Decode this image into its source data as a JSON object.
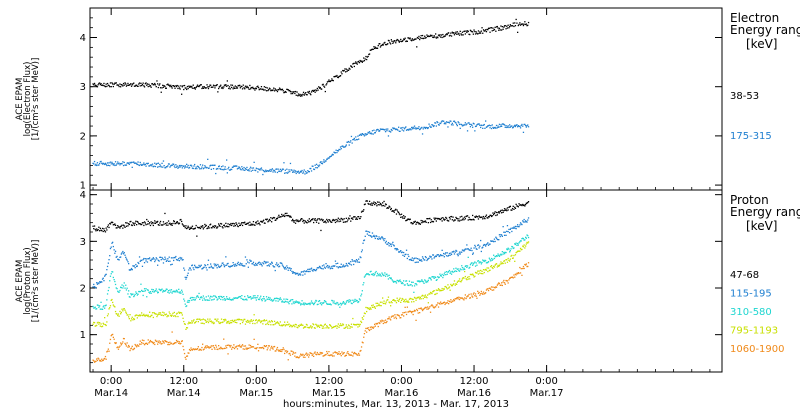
{
  "chart_data": {
    "type": "scatter",
    "x_label": "hours:minutes, Mar. 13, 2013 - Mar. 17, 2013",
    "x_range_hours": [
      -3.5,
      101
    ],
    "x_ticks": [
      {
        "h": 0,
        "time": "0:00",
        "date": "Mar.14"
      },
      {
        "h": 12,
        "time": "12:00",
        "date": "Mar.14"
      },
      {
        "h": 24,
        "time": "0:00",
        "date": "Mar.15"
      },
      {
        "h": 36,
        "time": "12:00",
        "date": "Mar.15"
      },
      {
        "h": 48,
        "time": "0:00",
        "date": "Mar.16"
      },
      {
        "h": 60,
        "time": "12:00",
        "date": "Mar.16"
      },
      {
        "h": 72,
        "time": "0:00",
        "date": "Mar.17"
      }
    ],
    "panels": [
      {
        "id": "electron",
        "ylabel_lines": [
          "ACE EPAM",
          "log(Electron Flux)",
          "[1/(cm²s ster MeV)]"
        ],
        "ylim": [
          0.9,
          4.6
        ],
        "yticks": [
          1,
          2,
          3,
          4
        ],
        "legend_title_lines": [
          "Electron",
          "Energy range"
        ],
        "legend_unit": "[keV]",
        "series": [
          {
            "name": "38-53",
            "color": "#000000",
            "points": [
              [
                -3,
                3.05
              ],
              [
                6,
                3.05
              ],
              [
                12,
                3.0
              ],
              [
                18,
                3.02
              ],
              [
                22,
                3.0
              ],
              [
                28,
                2.95
              ],
              [
                30,
                2.88
              ],
              [
                32,
                2.85
              ],
              [
                34,
                2.95
              ],
              [
                37,
                3.2
              ],
              [
                40,
                3.45
              ],
              [
                42,
                3.58
              ],
              [
                43,
                3.8
              ],
              [
                46,
                3.92
              ],
              [
                50,
                4.0
              ],
              [
                54,
                4.05
              ],
              [
                58,
                4.1
              ],
              [
                62,
                4.15
              ],
              [
                65,
                4.22
              ],
              [
                67,
                4.28
              ],
              [
                69,
                4.3
              ]
            ]
          },
          {
            "name": "175-315",
            "color": "#1f7fd0",
            "points": [
              [
                -3,
                1.45
              ],
              [
                4,
                1.45
              ],
              [
                10,
                1.4
              ],
              [
                16,
                1.38
              ],
              [
                22,
                1.35
              ],
              [
                28,
                1.3
              ],
              [
                32,
                1.28
              ],
              [
                34,
                1.4
              ],
              [
                36,
                1.6
              ],
              [
                39,
                1.85
              ],
              [
                41,
                2.0
              ],
              [
                44,
                2.12
              ],
              [
                48,
                2.15
              ],
              [
                52,
                2.2
              ],
              [
                55,
                2.3
              ],
              [
                58,
                2.25
              ],
              [
                62,
                2.2
              ],
              [
                66,
                2.22
              ],
              [
                69,
                2.22
              ]
            ]
          }
        ]
      },
      {
        "id": "proton",
        "ylabel_lines": [
          "ACE EPAM",
          "log(Proton Flux)",
          "[1/(cm²s ster MeV)]"
        ],
        "ylim": [
          0.2,
          4.1
        ],
        "yticks": [
          1,
          2,
          3,
          4
        ],
        "legend_title_lines": [
          "Proton",
          "Energy range"
        ],
        "legend_unit": "[keV]",
        "series": [
          {
            "name": "47-68",
            "color": "#000000",
            "points": [
              [
                -3,
                3.3
              ],
              [
                -1,
                3.25
              ],
              [
                0,
                3.45
              ],
              [
                1,
                3.3
              ],
              [
                3,
                3.4
              ],
              [
                10,
                3.4
              ],
              [
                11.5,
                3.45
              ],
              [
                12.2,
                3.3
              ],
              [
                18,
                3.35
              ],
              [
                24,
                3.4
              ],
              [
                27,
                3.5
              ],
              [
                29,
                3.6
              ],
              [
                30,
                3.45
              ],
              [
                36,
                3.45
              ],
              [
                41,
                3.5
              ],
              [
                42,
                3.85
              ],
              [
                45,
                3.8
              ],
              [
                47,
                3.65
              ],
              [
                48,
                3.55
              ],
              [
                50,
                3.4
              ],
              [
                54,
                3.5
              ],
              [
                58,
                3.5
              ],
              [
                62,
                3.55
              ],
              [
                66,
                3.72
              ],
              [
                69,
                3.85
              ]
            ]
          },
          {
            "name": "115-195",
            "color": "#1f7fd0",
            "points": [
              [
                -3,
                2.05
              ],
              [
                -1,
                2.25
              ],
              [
                0,
                3.0
              ],
              [
                1,
                2.6
              ],
              [
                2,
                2.8
              ],
              [
                3,
                2.4
              ],
              [
                5,
                2.6
              ],
              [
                11.7,
                2.65
              ],
              [
                12.2,
                2.2
              ],
              [
                13,
                2.45
              ],
              [
                18,
                2.5
              ],
              [
                24,
                2.55
              ],
              [
                28,
                2.5
              ],
              [
                31,
                2.3
              ],
              [
                34,
                2.45
              ],
              [
                38,
                2.5
              ],
              [
                41,
                2.6
              ],
              [
                42,
                3.2
              ],
              [
                45,
                3.05
              ],
              [
                47,
                2.85
              ],
              [
                50,
                2.6
              ],
              [
                54,
                2.7
              ],
              [
                58,
                2.8
              ],
              [
                62,
                2.95
              ],
              [
                66,
                3.25
              ],
              [
                69,
                3.5
              ]
            ]
          },
          {
            "name": "310-580",
            "color": "#1fd6d0",
            "points": [
              [
                -3,
                1.6
              ],
              [
                -1,
                1.6
              ],
              [
                0,
                2.4
              ],
              [
                1,
                1.9
              ],
              [
                2,
                2.1
              ],
              [
                3,
                1.85
              ],
              [
                5,
                1.95
              ],
              [
                11.7,
                1.95
              ],
              [
                12.2,
                1.6
              ],
              [
                13,
                1.8
              ],
              [
                18,
                1.8
              ],
              [
                24,
                1.8
              ],
              [
                28,
                1.75
              ],
              [
                31,
                1.7
              ],
              [
                34,
                1.7
              ],
              [
                38,
                1.7
              ],
              [
                41,
                1.75
              ],
              [
                42,
                2.35
              ],
              [
                45,
                2.3
              ],
              [
                47,
                2.15
              ],
              [
                50,
                2.1
              ],
              [
                54,
                2.25
              ],
              [
                58,
                2.45
              ],
              [
                62,
                2.6
              ],
              [
                66,
                2.85
              ],
              [
                69,
                3.15
              ]
            ]
          },
          {
            "name": "795-1193",
            "color": "#c8e000",
            "points": [
              [
                -3,
                1.25
              ],
              [
                -1,
                1.2
              ],
              [
                0,
                1.8
              ],
              [
                1,
                1.4
              ],
              [
                2,
                1.6
              ],
              [
                3,
                1.35
              ],
              [
                5,
                1.45
              ],
              [
                11.7,
                1.45
              ],
              [
                12.2,
                1.15
              ],
              [
                13,
                1.3
              ],
              [
                18,
                1.3
              ],
              [
                24,
                1.3
              ],
              [
                28,
                1.25
              ],
              [
                31,
                1.2
              ],
              [
                34,
                1.2
              ],
              [
                38,
                1.2
              ],
              [
                41,
                1.2
              ],
              [
                42,
                1.55
              ],
              [
                45,
                1.7
              ],
              [
                47,
                1.75
              ],
              [
                50,
                1.75
              ],
              [
                54,
                1.95
              ],
              [
                58,
                2.2
              ],
              [
                62,
                2.4
              ],
              [
                66,
                2.65
              ],
              [
                69,
                3.0
              ]
            ]
          },
          {
            "name": "1060-1900",
            "color": "#f08a1a",
            "points": [
              [
                -3,
                0.45
              ],
              [
                -1,
                0.5
              ],
              [
                0,
                1.05
              ],
              [
                1,
                0.7
              ],
              [
                2,
                0.9
              ],
              [
                3,
                0.7
              ],
              [
                5,
                0.85
              ],
              [
                11.7,
                0.85
              ],
              [
                12.2,
                0.45
              ],
              [
                13,
                0.7
              ],
              [
                18,
                0.75
              ],
              [
                24,
                0.75
              ],
              [
                28,
                0.7
              ],
              [
                31,
                0.55
              ],
              [
                34,
                0.6
              ],
              [
                38,
                0.6
              ],
              [
                41,
                0.6
              ],
              [
                42,
                1.1
              ],
              [
                45,
                1.3
              ],
              [
                47,
                1.4
              ],
              [
                50,
                1.5
              ],
              [
                54,
                1.65
              ],
              [
                58,
                1.8
              ],
              [
                62,
                1.95
              ],
              [
                66,
                2.2
              ],
              [
                69,
                2.55
              ]
            ]
          }
        ]
      }
    ]
  }
}
